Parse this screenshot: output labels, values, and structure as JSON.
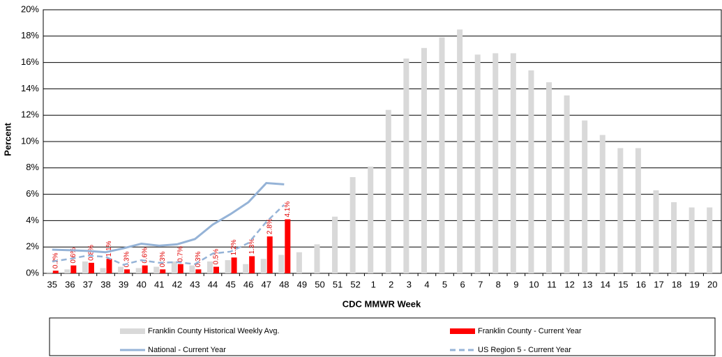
{
  "chart_data": {
    "type": "bar",
    "x_label": "CDC MMWR Week",
    "y_label": "Percent",
    "categories": [
      "35",
      "36",
      "37",
      "38",
      "39",
      "40",
      "41",
      "42",
      "43",
      "44",
      "45",
      "46",
      "47",
      "48",
      "49",
      "50",
      "51",
      "52",
      "1",
      "2",
      "3",
      "4",
      "5",
      "6",
      "7",
      "8",
      "9",
      "10",
      "11",
      "12",
      "13",
      "14",
      "15",
      "16",
      "17",
      "18",
      "19",
      "20"
    ],
    "ylim": [
      0,
      20
    ],
    "yticks": [
      {
        "value": 0,
        "label": "0%"
      },
      {
        "value": 2,
        "label": "2%"
      },
      {
        "value": 4,
        "label": "4%"
      },
      {
        "value": 6,
        "label": "6%"
      },
      {
        "value": 8,
        "label": "8%"
      },
      {
        "value": 10,
        "label": "10%"
      },
      {
        "value": 12,
        "label": "12%"
      },
      {
        "value": 14,
        "label": "14%"
      },
      {
        "value": 16,
        "label": "16%"
      },
      {
        "value": 18,
        "label": "18%"
      },
      {
        "value": 20,
        "label": "20%"
      }
    ],
    "grid": true,
    "legend": "bottom",
    "series": [
      {
        "name": "Franklin County Historical Weekly Avg.",
        "type": "bar",
        "color": "#d9d9d9",
        "values": [
          0.1,
          0.3,
          0.9,
          0.4,
          0.5,
          0.4,
          0.5,
          0.9,
          0.6,
          0.9,
          1.0,
          0.7,
          1.1,
          1.4,
          1.6,
          2.2,
          4.3,
          7.3,
          8.1,
          12.4,
          16.3,
          17.1,
          17.9,
          18.5,
          16.6,
          16.7,
          16.7,
          15.4,
          14.5,
          13.5,
          11.6,
          10.5,
          9.5,
          9.5,
          6.3,
          5.4,
          5.0,
          5.0
        ]
      },
      {
        "name": "Franklin County - Current Year",
        "type": "bar",
        "color": "#ff0000",
        "values": [
          0.2,
          0.6,
          0.8,
          1.1,
          0.3,
          0.6,
          0.3,
          0.7,
          0.3,
          0.5,
          1.2,
          1.3,
          2.8,
          4.1,
          null,
          null,
          null,
          null,
          null,
          null,
          null,
          null,
          null,
          null,
          null,
          null,
          null,
          null,
          null,
          null,
          null,
          null,
          null,
          null,
          null,
          null,
          null,
          null
        ],
        "value_labels": [
          "0.2%",
          "0.6%",
          "0.8%",
          "1.1%",
          "0.3%",
          "0.6%",
          "0.3%",
          "0.7%",
          "0.3%",
          "0.5%",
          "1.2%",
          "1.3%",
          "2.8%",
          "4.1%",
          null,
          null,
          null,
          null,
          null,
          null,
          null,
          null,
          null,
          null,
          null,
          null,
          null,
          null,
          null,
          null,
          null,
          null,
          null,
          null,
          null,
          null,
          null,
          null
        ]
      },
      {
        "name": "National - Current Year",
        "type": "line",
        "color": "#95b3d7",
        "dash": false,
        "values": [
          1.8,
          1.75,
          1.7,
          1.6,
          1.9,
          2.25,
          2.1,
          2.2,
          2.6,
          3.7,
          4.5,
          5.4,
          6.85,
          6.75,
          null,
          null,
          null,
          null,
          null,
          null,
          null,
          null,
          null,
          null,
          null,
          null,
          null,
          null,
          null,
          null,
          null,
          null,
          null,
          null,
          null,
          null,
          null,
          null
        ]
      },
      {
        "name": "US Region 5 - Current Year",
        "type": "line",
        "color": "#95b3d7",
        "dash": true,
        "values": [
          0.9,
          1.1,
          1.35,
          1.25,
          0.65,
          1.0,
          0.8,
          0.85,
          0.7,
          1.5,
          1.65,
          2.3,
          3.9,
          5.2,
          null,
          null,
          null,
          null,
          null,
          null,
          null,
          null,
          null,
          null,
          null,
          null,
          null,
          null,
          null,
          null,
          null,
          null,
          null,
          null,
          null,
          null,
          null,
          null
        ]
      }
    ]
  }
}
